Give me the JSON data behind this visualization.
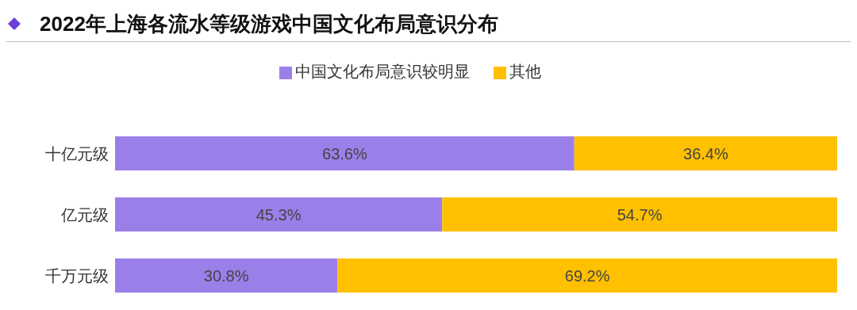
{
  "chart_data": {
    "type": "bar",
    "title": "2022年上海各流水等级游戏中国文化布局意识分布",
    "orientation": "horizontal",
    "stacked": true,
    "categories": [
      "十亿元级",
      "亿元级",
      "千万元级"
    ],
    "series": [
      {
        "name": "中国文化布局意识较明显",
        "color": "#9b7fe8",
        "values": [
          63.6,
          45.3,
          30.8
        ],
        "value_labels": [
          "63.6%",
          "45.3%",
          "30.8%"
        ]
      },
      {
        "name": "其他",
        "color": "#ffc000",
        "values": [
          36.4,
          54.7,
          69.2
        ],
        "value_labels": [
          "36.4%",
          "54.7%",
          "69.2%"
        ]
      }
    ],
    "xlim": [
      0,
      100
    ],
    "tick_labels": "y",
    "legend": "top",
    "grid": false
  }
}
